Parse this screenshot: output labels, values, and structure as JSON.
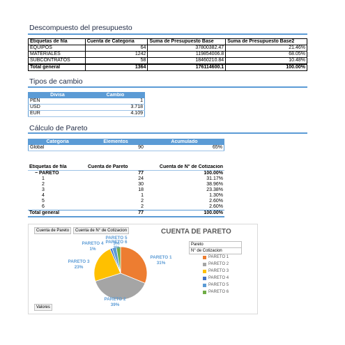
{
  "sections": {
    "budget_title": "Descompuesto del presupuesto",
    "exchange_title": "Tipos de cambio",
    "pareto_title": "Cálculo de Pareto"
  },
  "budget_table": {
    "headers": [
      "Etiquetas de fila",
      "Cuenta de Categoria",
      "Suma de Presupuesto Base",
      "Suma de Presupuesto Base2"
    ],
    "rows": [
      [
        "EQUIPOS",
        "64",
        "37800382.47",
        "21.46%"
      ],
      [
        "MATERIALES",
        "1242",
        "119854006.8",
        "68.05%"
      ],
      [
        "SUBCONTRATOS",
        "58",
        "18460210.84",
        "10.48%"
      ]
    ],
    "total": [
      "Total general",
      "1364",
      "176114600.1",
      "100.00%"
    ]
  },
  "exchange_table": {
    "headers": [
      "Divisa",
      "Cambio"
    ],
    "rows": [
      [
        "PEN",
        "1"
      ],
      [
        "USD",
        "3.718"
      ],
      [
        "EUR",
        "4.109"
      ]
    ]
  },
  "pareto_calc": {
    "headers": [
      "Categoria",
      "Elementos",
      "Acumulado"
    ],
    "row": [
      "Global",
      "90",
      "65%"
    ]
  },
  "pareto_pivot": {
    "headers": [
      "Etiquetas de fila",
      "Cuenta de Pareto",
      "Cuenta de N° de Cotizacion"
    ],
    "group": [
      "PARETO",
      "77",
      "100.00%"
    ],
    "rows": [
      [
        "1",
        "24",
        "31.17%"
      ],
      [
        "2",
        "30",
        "38.96%"
      ],
      [
        "3",
        "18",
        "23.38%"
      ],
      [
        "4",
        "1",
        "1.30%"
      ],
      [
        "5",
        "2",
        "2.60%"
      ],
      [
        "6",
        "2",
        "2.60%"
      ]
    ],
    "total": [
      "Total general",
      "77",
      "100.00%"
    ]
  },
  "chart_data": {
    "type": "pie",
    "title": "CUENTA DE PARETO",
    "field_buttons": [
      "Cuenta de Pareto",
      "Cuenta de N° de Cotizacion"
    ],
    "values_button": "Valores",
    "legend_fields": [
      "Pareto",
      "N° de Cotizacion"
    ],
    "categories": [
      "PARETO 1",
      "PARETO 2",
      "PARETO 3",
      "PARETO 4",
      "PARETO 5",
      "PARETO 6"
    ],
    "values": [
      24,
      30,
      18,
      1,
      2,
      2
    ],
    "percent_labels": [
      "31%",
      "39%",
      "23%",
      "1%",
      "3%",
      "3%"
    ],
    "colors": [
      "#ed7d31",
      "#a5a5a5",
      "#ffc000",
      "#4472c4",
      "#5b9bd5",
      "#70ad47"
    ],
    "legend_position": "right"
  }
}
